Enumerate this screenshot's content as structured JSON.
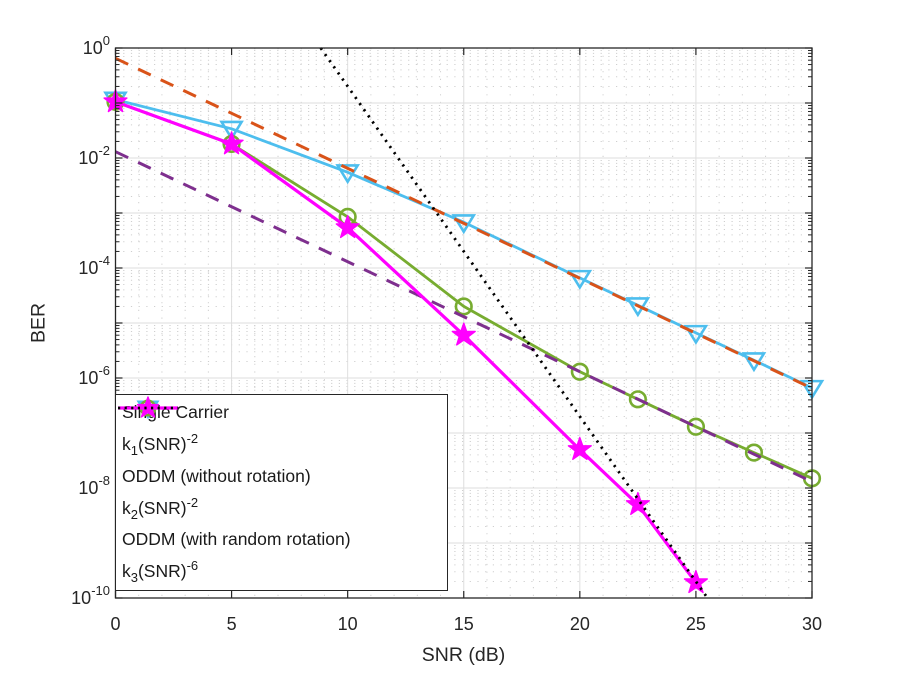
{
  "figure": {
    "background": "#ffffff",
    "axis_color": "#262626",
    "major_grid_color": "#dedede",
    "minor_grid_color": "#c4c4c4"
  },
  "chart_data": {
    "type": "line",
    "title": "",
    "xlabel": "SNR (dB)",
    "ylabel": "BER",
    "x_axis": {
      "min": 0,
      "max": 30,
      "ticks": [
        0,
        5,
        10,
        15,
        20,
        25,
        30
      ],
      "tick_labels": [
        "0",
        "5",
        "10",
        "15",
        "20",
        "25",
        "30"
      ],
      "minor_interval": 1
    },
    "y_axis": {
      "scale": "log",
      "min_exp": -10,
      "max_exp": 0,
      "tick_base": "10",
      "tick_exponents": [
        0,
        -2,
        -4,
        -6,
        -8,
        -10
      ],
      "tick_exponent_labels": [
        "0",
        "-2",
        "-4",
        "-6",
        "-8",
        "-10"
      ],
      "minor": "log"
    },
    "grid": {
      "major": true,
      "minor": true
    },
    "legend_position": "southwest",
    "series": [
      {
        "label": "Single Carrier",
        "color": "#4DBEEE",
        "line": "solid",
        "width": 2.8,
        "marker": "triangle-down",
        "x": [
          0,
          5,
          10,
          15,
          20,
          22.5,
          25,
          27.5,
          30
        ],
        "y": [
          0.115,
          0.034,
          0.0055,
          0.00068,
          6.6e-05,
          2.1e-05,
          6.6e-06,
          2.1e-06,
          6.6e-07
        ],
        "legend_parts": [
          {
            "t": "Single Carrier"
          }
        ]
      },
      {
        "label": "k1(SNR)^-2",
        "color": "#D95319",
        "line": "dashed",
        "width": 3.0,
        "marker": null,
        "k": 0.65,
        "slope_exponent": -2,
        "x": [
          0,
          30
        ],
        "y": [
          0.65,
          6.5e-07
        ],
        "legend_parts": [
          {
            "t": "k"
          },
          {
            "t": "1",
            "s": "sub"
          },
          {
            "t": "(SNR)"
          },
          {
            "t": "-2",
            "s": "sup"
          }
        ]
      },
      {
        "label": "ODDM (without rotation)",
        "color": "#77AC30",
        "line": "solid",
        "width": 2.8,
        "marker": "circle",
        "x": [
          0,
          5,
          10,
          15,
          20,
          22.5,
          25,
          27.5,
          30
        ],
        "y": [
          0.105,
          0.018,
          0.00085,
          2e-05,
          1.3e-06,
          4.1e-07,
          1.3e-07,
          4.4e-08,
          1.5e-08
        ],
        "legend_parts": [
          {
            "t": "ODDM (without rotation)"
          }
        ]
      },
      {
        "label": "k2(SNR)^-2",
        "color": "#7E2F8E",
        "line": "dashed",
        "width": 3.0,
        "marker": null,
        "k": 0.013,
        "slope_exponent": -2,
        "x": [
          0,
          30
        ],
        "y": [
          0.013,
          1.3e-08
        ],
        "legend_parts": [
          {
            "t": "k"
          },
          {
            "t": "2",
            "s": "sub"
          },
          {
            "t": "(SNR)"
          },
          {
            "t": "-2",
            "s": "sup"
          }
        ]
      },
      {
        "label": "ODDM (with random rotation)",
        "color": "#FF00FF",
        "line": "solid",
        "width": 3.2,
        "marker": "star",
        "x": [
          0,
          5,
          10,
          15,
          20,
          22.5,
          25
        ],
        "y": [
          0.105,
          0.018,
          0.00054,
          6e-06,
          5e-08,
          5e-09,
          1.9e-10
        ],
        "legend_parts": [
          {
            "t": "ODDM (with random rotation)"
          }
        ]
      },
      {
        "label": "k3(SNR)^-6",
        "color": "#000000",
        "line": "dotted",
        "width": 2.8,
        "marker": null,
        "k": 200000,
        "slope_exponent": -6,
        "x": [
          8.84,
          25.5
        ],
        "y": [
          1.0,
          1e-10
        ],
        "legend_parts": [
          {
            "t": "k"
          },
          {
            "t": "3",
            "s": "sub"
          },
          {
            "t": "(SNR)"
          },
          {
            "t": "-6",
            "s": "sup"
          }
        ]
      }
    ]
  }
}
